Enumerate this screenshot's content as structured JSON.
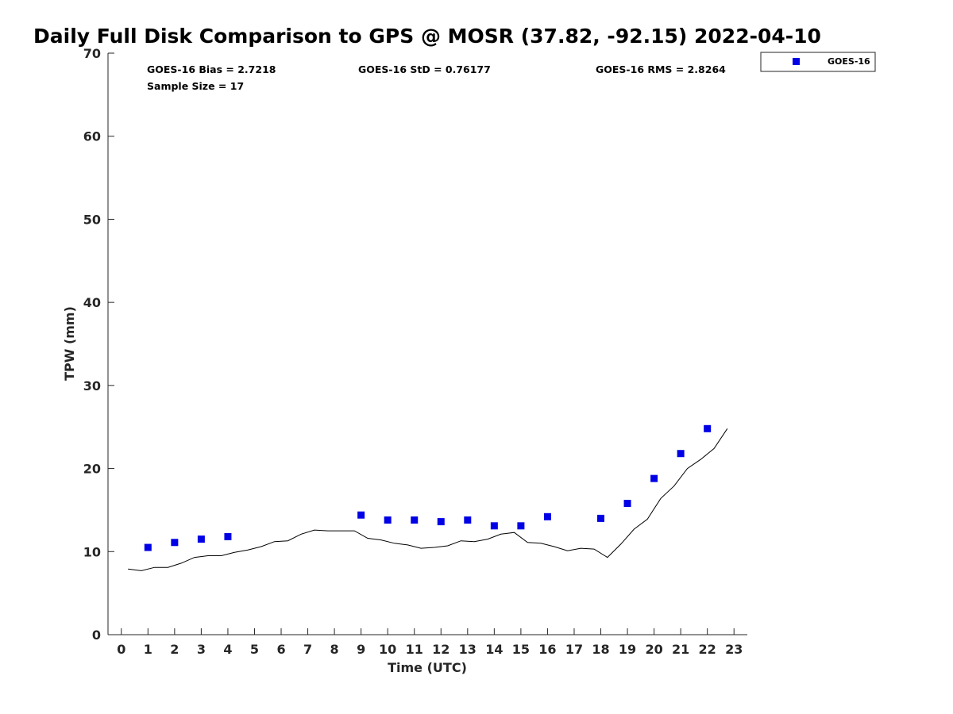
{
  "chart_data": {
    "type": "scatter",
    "title": "Daily Full Disk Comparison to GPS @ MOSR (37.82, -92.15) 2022-04-10",
    "xlabel": "Time (UTC)",
    "ylabel": "TPW (mm)",
    "xlim": [
      -0.5,
      23.5
    ],
    "ylim": [
      0,
      70
    ],
    "xticks": [
      0,
      1,
      2,
      3,
      4,
      5,
      6,
      7,
      8,
      9,
      10,
      11,
      12,
      13,
      14,
      15,
      16,
      17,
      18,
      19,
      20,
      21,
      22,
      23
    ],
    "yticks": [
      0,
      10,
      20,
      30,
      40,
      50,
      60,
      70
    ],
    "grid": false,
    "legend_position": "top-right, outside plot",
    "stats": {
      "bias": "GOES-16 Bias = 2.7218",
      "std": "GOES-16 StD = 0.76177",
      "rms": "GOES-16 RMS = 2.8264",
      "sample": "Sample Size = 17"
    },
    "series": [
      {
        "name": "GOES-16",
        "kind": "scatter",
        "marker": "square",
        "color": "#0000e6",
        "x": [
          1,
          2,
          3,
          4,
          9,
          10,
          11,
          12,
          13,
          14,
          15,
          16,
          18,
          19,
          20,
          21,
          22
        ],
        "y": [
          10.5,
          11.1,
          11.5,
          11.8,
          14.4,
          13.8,
          13.8,
          13.6,
          13.8,
          13.1,
          13.1,
          14.2,
          14.0,
          15.8,
          18.8,
          21.8,
          24.8
        ]
      },
      {
        "kind": "line",
        "color": "#000000",
        "x": [
          0.25,
          0.75,
          1.25,
          1.75,
          2.25,
          2.75,
          3.25,
          3.75,
          4.25,
          4.75,
          5.25,
          5.75,
          6.25,
          6.75,
          7.25,
          7.75,
          8.25,
          8.75,
          9.25,
          9.75,
          10.25,
          10.75,
          11.25,
          11.75,
          12.25,
          12.75,
          13.25,
          13.75,
          14.25,
          14.75,
          15.25,
          15.75,
          16.25,
          16.75,
          17.25,
          17.75,
          18.25,
          18.75,
          19.25,
          19.75,
          20.25,
          20.75,
          21.25,
          21.75,
          22.25,
          22.75
        ],
        "y": [
          7.9,
          7.7,
          8.1,
          8.1,
          8.6,
          9.3,
          9.5,
          9.5,
          9.9,
          10.2,
          10.6,
          11.2,
          11.3,
          12.1,
          12.6,
          12.5,
          12.5,
          12.5,
          11.6,
          11.4,
          11.0,
          10.8,
          10.4,
          10.5,
          10.7,
          11.3,
          11.2,
          11.5,
          12.1,
          12.3,
          11.1,
          11.0,
          10.6,
          10.1,
          10.4,
          10.3,
          9.3,
          10.9,
          12.7,
          13.9,
          16.4,
          17.9,
          20.0,
          21.1,
          22.4,
          24.8
        ]
      }
    ]
  }
}
